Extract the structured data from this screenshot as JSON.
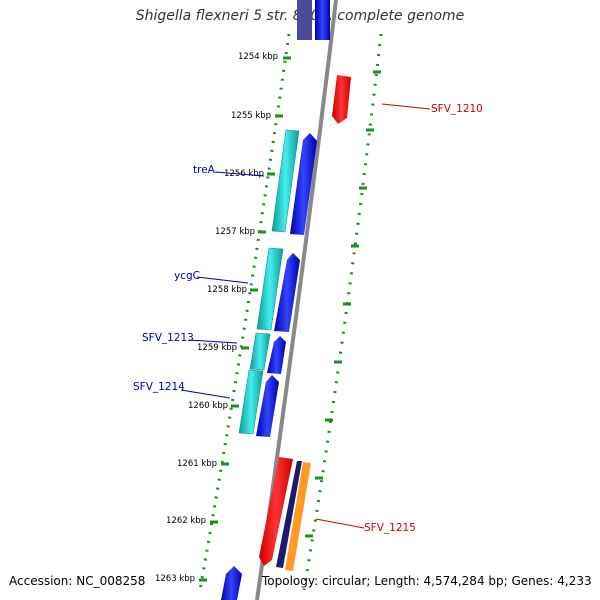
{
  "title": "Shigella flexneri 5 str. 8401, complete genome",
  "footer": {
    "accession": "Accession: NC_008258",
    "summary": "Topology: circular; Length: 4,574,284 bp; Genes: 4,233"
  },
  "ticks": [
    "1254 kbp",
    "1255 kbp",
    "1256 kbp",
    "1257 kbp",
    "1258 kbp",
    "1259 kbp",
    "1260 kbp",
    "1261 kbp",
    "1262 kbp",
    "1263 kbp"
  ],
  "gene_labels": [
    "treA",
    "ycgC",
    "SFV_1213",
    "SFV_1214",
    "SFV_1210",
    "SFV_1215"
  ],
  "colors": {
    "backbone": "#888888",
    "tick_mark": "#1e8c1e",
    "cds": "#0000ee",
    "gene": "#22cccc",
    "reverse_feature": "#ee0000",
    "dark_feature": "#1a1a6e",
    "orange_feature": "#ff9922",
    "label_left": "#0000aa",
    "label_right": "#cc0000"
  }
}
